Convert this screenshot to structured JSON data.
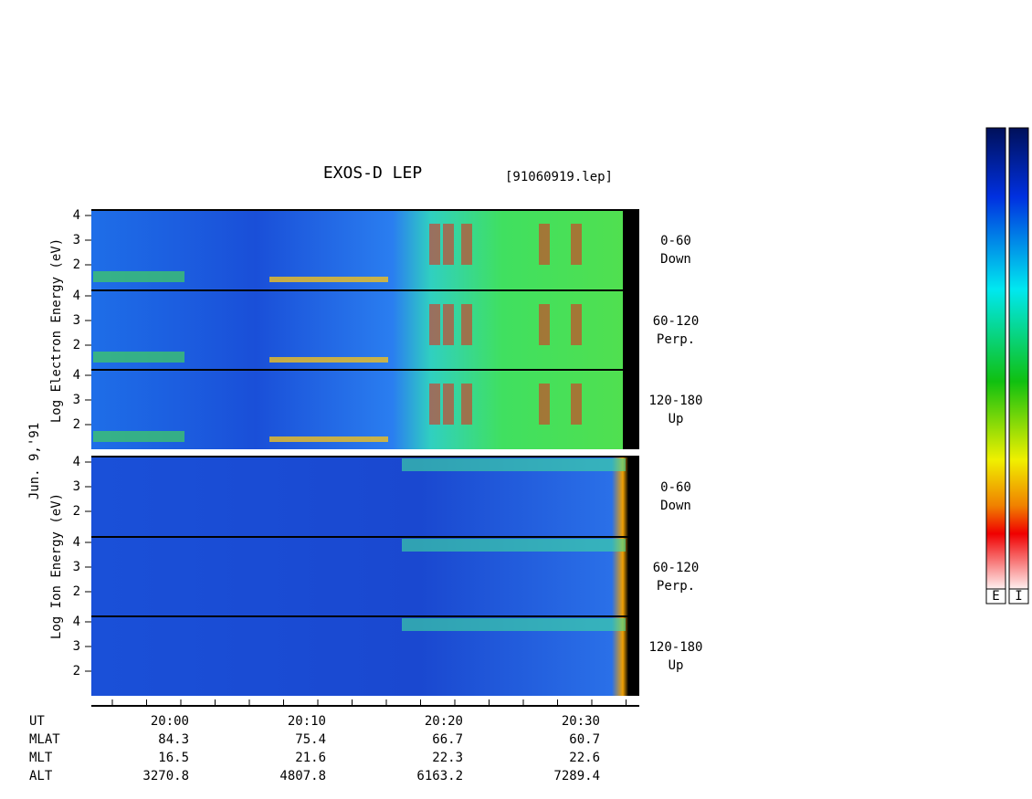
{
  "title": "EXOS-D LEP",
  "file": "[91060919.lep]",
  "date": "Jun. 9,'91",
  "electron_axis_label": "Log Electron Energy (eV)",
  "ion_axis_label": "Log Ion Energy (eV)",
  "panels": [
    {
      "angle": "0-60",
      "direction": "Down",
      "ticks": [
        "4",
        "3",
        "2"
      ]
    },
    {
      "angle": "60-120",
      "direction": "Perp.",
      "ticks": [
        "4",
        "3",
        "2"
      ]
    },
    {
      "angle": "120-180",
      "direction": "Up",
      "ticks": [
        "4",
        "3",
        "2"
      ]
    },
    {
      "angle": "0-60",
      "direction": "Down",
      "ticks": [
        "4",
        "3",
        "2"
      ]
    },
    {
      "angle": "60-120",
      "direction": "Perp.",
      "ticks": [
        "4",
        "3",
        "2"
      ]
    },
    {
      "angle": "120-180",
      "direction": "Up",
      "ticks": [
        "4",
        "3",
        "2"
      ]
    }
  ],
  "rows": [
    {
      "label": "UT",
      "values": [
        "20:00",
        "20:10",
        "20:20",
        "20:30"
      ]
    },
    {
      "label": "MLAT",
      "values": [
        "84.3",
        "75.4",
        "66.7",
        "60.7"
      ]
    },
    {
      "label": "MLT",
      "values": [
        "16.5",
        "21.6",
        "22.3",
        "22.6"
      ]
    },
    {
      "label": "ALT",
      "values": [
        "3270.8",
        "4807.8",
        "6163.2",
        "7289.4"
      ]
    }
  ],
  "colorbars": [
    "E",
    "I"
  ]
}
